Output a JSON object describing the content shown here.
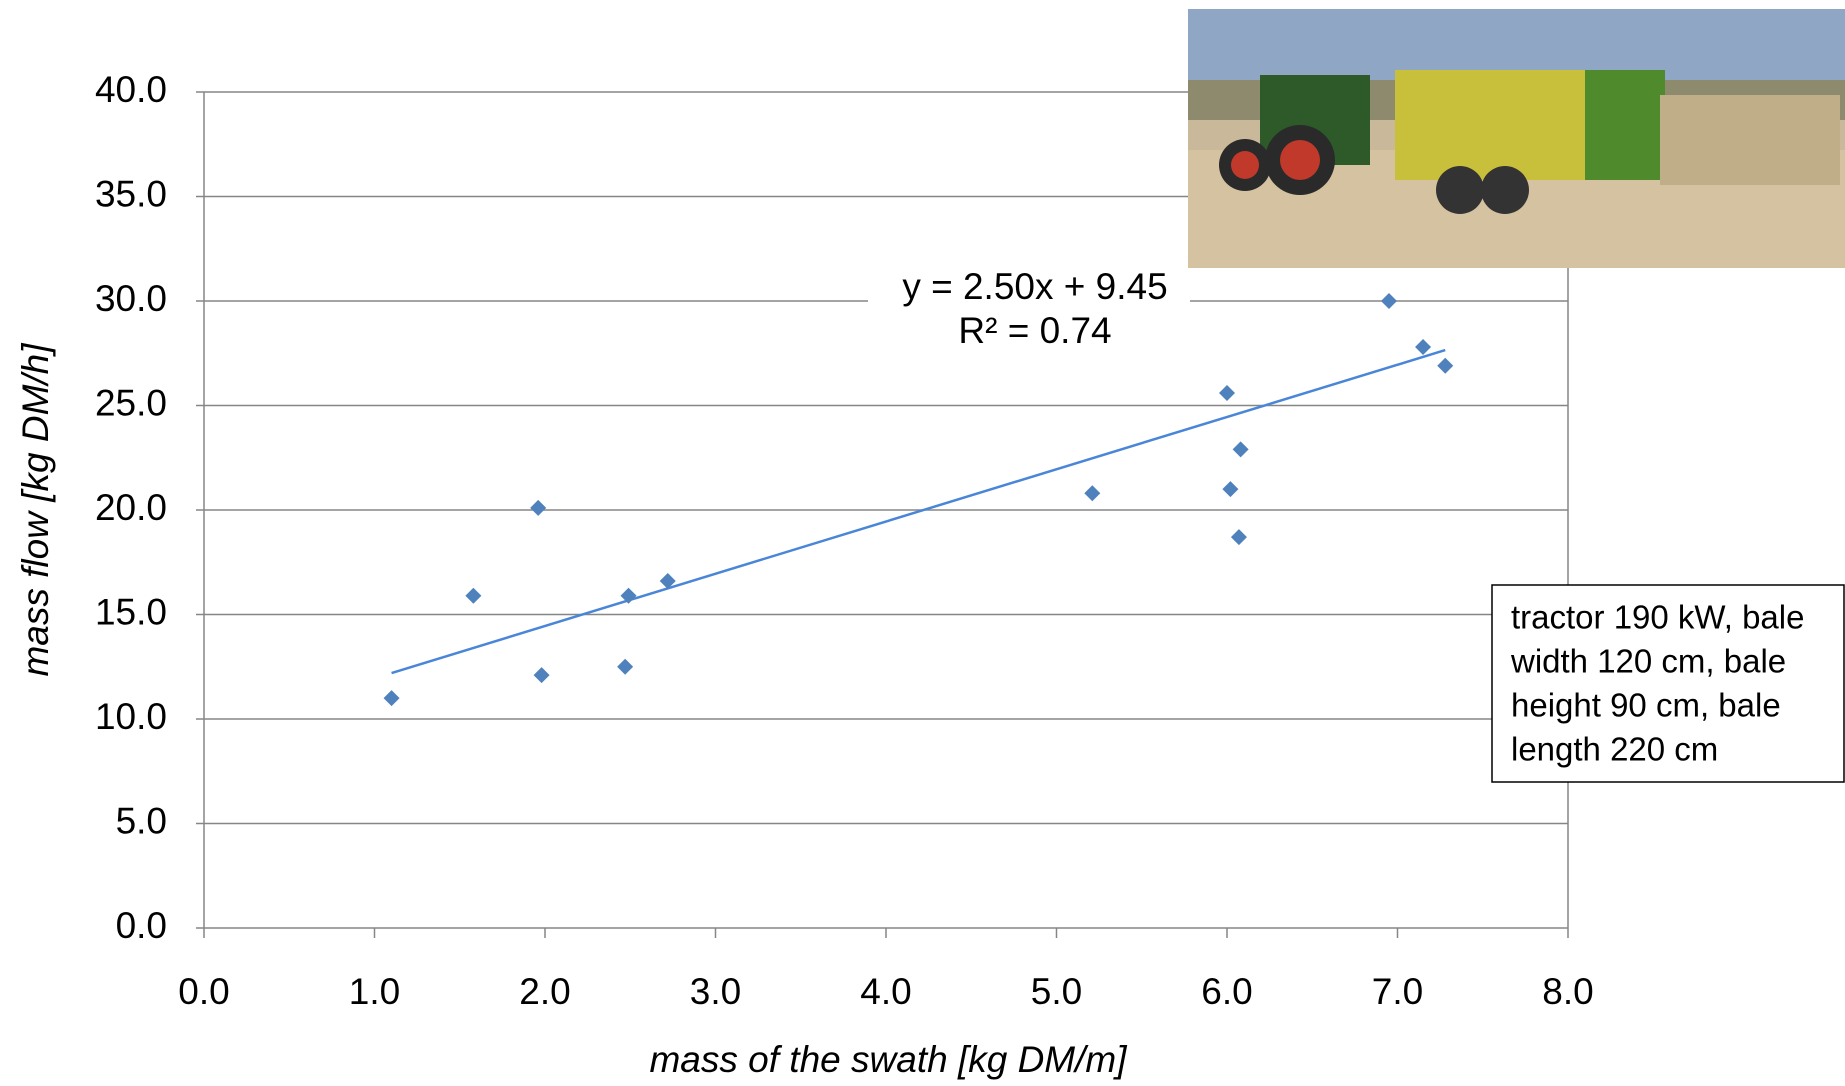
{
  "chart_data": {
    "type": "scatter",
    "x_label": "mass of the swath [kg DM/m]",
    "y_label": "mass flow [kg DM/h]",
    "x": [
      1.1,
      1.58,
      1.96,
      1.98,
      2.47,
      2.49,
      2.72,
      5.21,
      6.0,
      6.02,
      6.07,
      6.08,
      6.95,
      7.15,
      7.28
    ],
    "series": [
      {
        "color": "#4f81bd",
        "values": [
          11.0,
          15.9,
          20.1,
          12.1,
          12.5,
          15.9,
          16.6,
          20.8,
          25.6,
          21.0,
          18.7,
          22.9,
          30.0,
          27.8,
          26.9
        ]
      }
    ],
    "trendline": {
      "color": "#4a86d8",
      "x": [
        1.1,
        7.28
      ],
      "values": [
        12.2,
        27.65
      ],
      "equation": "y = 2.50x + 9.45",
      "r_squared": "R² = 0.74"
    },
    "xlim": [
      0,
      8
    ],
    "ylim": [
      0,
      40
    ],
    "xticks": [
      {
        "value": 0,
        "label": "0.0"
      },
      {
        "value": 1,
        "label": "1.0"
      },
      {
        "value": 2,
        "label": "2.0"
      },
      {
        "value": 3,
        "label": "3.0"
      },
      {
        "value": 4,
        "label": "4.0"
      },
      {
        "value": 5,
        "label": "5.0"
      },
      {
        "value": 6,
        "label": "6.0"
      },
      {
        "value": 7,
        "label": "7.0"
      },
      {
        "value": 8,
        "label": "8.0"
      }
    ],
    "yticks": [
      {
        "value": 0,
        "label": "0.0"
      },
      {
        "value": 5,
        "label": "5.0"
      },
      {
        "value": 10,
        "label": "10.0"
      },
      {
        "value": 15,
        "label": "15.0"
      },
      {
        "value": 20,
        "label": "20.0"
      },
      {
        "value": 25,
        "label": "25.0"
      },
      {
        "value": 30,
        "label": "30.0"
      },
      {
        "value": 35,
        "label": "35.0"
      },
      {
        "value": 40,
        "label": "40.0"
      }
    ],
    "grid": true,
    "annotation": [
      "tractor 190 kW, bale",
      "width 120 cm, bale",
      "height 90 cm, bale",
      "length 220 cm"
    ]
  }
}
